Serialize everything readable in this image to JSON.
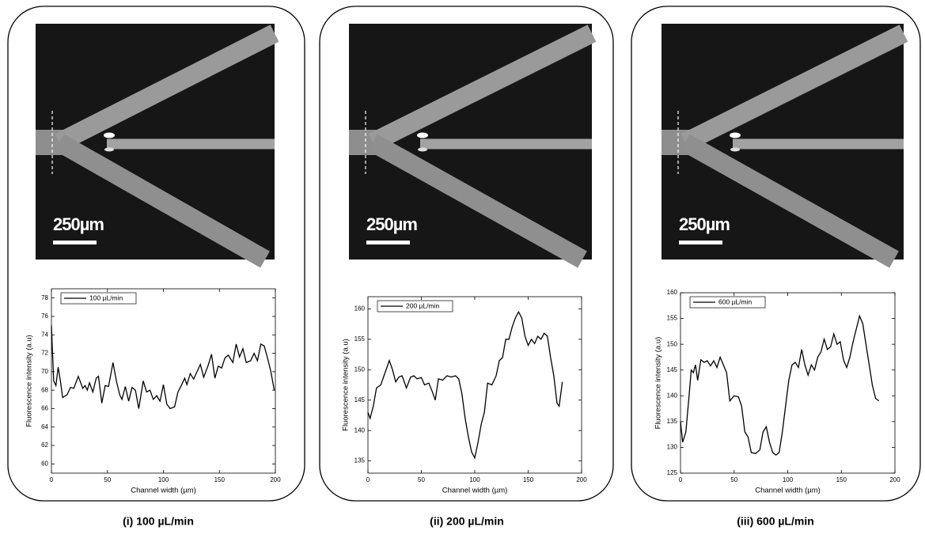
{
  "chart_data": [
    {
      "type": "line",
      "caption": "(i) 100 µL/min",
      "scale_bar_label": "250µm",
      "xlabel": "Channel width (µm)",
      "ylabel": "Fluorescence intensity (a.u)",
      "xlim": [
        0,
        200
      ],
      "ylim": [
        59,
        79
      ],
      "xticks": [
        0,
        50,
        100,
        150,
        200
      ],
      "yticks": [
        60,
        62,
        64,
        66,
        68,
        70,
        72,
        74,
        76,
        78
      ],
      "legend_position": "upper left",
      "x": [
        0,
        2,
        4,
        6,
        8,
        10,
        14,
        17,
        20,
        24,
        28,
        30,
        32,
        34,
        37,
        40,
        42,
        45,
        48,
        51,
        55,
        58,
        61,
        63,
        66,
        69,
        72,
        75,
        78,
        82,
        85,
        88,
        91,
        94,
        97,
        100,
        103,
        106,
        110,
        113,
        116,
        119,
        121,
        124,
        127,
        130,
        133,
        136,
        140,
        143,
        146,
        149,
        152,
        155,
        158,
        162,
        165,
        168,
        171,
        174,
        178,
        181,
        184,
        187,
        190,
        193,
        196,
        199
      ],
      "series": [
        {
          "name": "100 µL/min",
          "color": "#000000",
          "values": [
            75,
            69,
            68.5,
            70.5,
            69,
            67.2,
            67.5,
            68.3,
            68.2,
            69.5,
            68.2,
            68.5,
            68,
            68.8,
            67.8,
            69.3,
            69.5,
            66.6,
            68.5,
            68.4,
            71,
            69,
            67.5,
            67,
            68.4,
            66.8,
            68.3,
            68,
            66,
            69,
            67.8,
            68,
            67,
            67.4,
            66.8,
            68.6,
            66.5,
            66,
            66.2,
            67.8,
            68.5,
            69.3,
            68.6,
            69.8,
            69.2,
            70,
            70.8,
            69.4,
            70.7,
            71.9,
            69.3,
            70.6,
            70.4,
            71.5,
            71.8,
            71,
            73,
            71.6,
            72.5,
            71,
            71.2,
            72,
            71.2,
            73,
            72.8,
            71.5,
            70,
            68
          ]
        }
      ]
    },
    {
      "type": "line",
      "caption": "(ii) 200 µL/min",
      "scale_bar_label": "250µm",
      "xlabel": "Channel width (µm)",
      "ylabel": "Fluorescence intensity (a.u)",
      "xlim": [
        0,
        200
      ],
      "ylim": [
        133,
        162
      ],
      "xticks": [
        0,
        50,
        100,
        150,
        200
      ],
      "yticks": [
        135,
        140,
        145,
        150,
        155,
        160
      ],
      "legend_position": "upper left",
      "x": [
        0,
        2,
        5,
        8,
        12,
        16,
        20,
        23,
        26,
        29,
        32,
        36,
        40,
        43,
        46,
        50,
        53,
        57,
        60,
        63,
        66,
        70,
        74,
        78,
        82,
        85,
        88,
        91,
        94,
        97,
        100,
        103,
        106,
        109,
        112,
        116,
        120,
        123,
        126,
        129,
        132,
        135,
        138,
        141,
        144,
        147,
        150,
        153,
        156,
        159,
        162,
        165,
        168,
        171,
        174,
        177,
        179,
        182
      ],
      "series": [
        {
          "name": "200 µL/min",
          "color": "#000000",
          "values": [
            143,
            142,
            144,
            147,
            147.5,
            149.5,
            151.5,
            150,
            148,
            148.8,
            149,
            147,
            148.8,
            149,
            148.5,
            148.7,
            147.5,
            147.8,
            146.5,
            145,
            148.5,
            148.3,
            149,
            148.8,
            149,
            148.5,
            146,
            142,
            139,
            136.5,
            135.5,
            138,
            141,
            143,
            147.8,
            147.5,
            149,
            151.5,
            152,
            155,
            155,
            157,
            158.5,
            159.5,
            158.5,
            155.5,
            154,
            155,
            154.3,
            155.5,
            155,
            156,
            155.5,
            152,
            149,
            144.5,
            144,
            148
          ]
        }
      ]
    },
    {
      "type": "line",
      "caption": "(iii) 600 µL/min",
      "scale_bar_label": "250µm",
      "xlabel": "Channel width (µm)",
      "ylabel": "Fluorescence intensity (a.u)",
      "xlim": [
        0,
        200
      ],
      "ylim": [
        125,
        160
      ],
      "xticks": [
        0,
        50,
        100,
        150,
        200
      ],
      "yticks": [
        125,
        130,
        135,
        140,
        145,
        150,
        155,
        160
      ],
      "legend_position": "upper left",
      "x": [
        0,
        2,
        5,
        8,
        10,
        12,
        14,
        16,
        19,
        22,
        25,
        28,
        31,
        34,
        37,
        40,
        43,
        46,
        50,
        54,
        57,
        60,
        63,
        66,
        70,
        74,
        77,
        80,
        83,
        86,
        89,
        92,
        95,
        98,
        101,
        104,
        107,
        110,
        113,
        116,
        119,
        122,
        125,
        128,
        131,
        134,
        137,
        140,
        143,
        146,
        149,
        152,
        155,
        158,
        161,
        164,
        167,
        170,
        173,
        176,
        179,
        182,
        185
      ],
      "series": [
        {
          "name": "600 µL/min",
          "color": "#000000",
          "values": [
            135,
            131,
            133,
            140,
            145,
            144.5,
            146,
            143,
            147,
            146.5,
            146.8,
            145.8,
            146.8,
            145.5,
            147.5,
            146,
            144.5,
            139,
            140,
            139.8,
            138,
            133,
            132,
            129,
            128.8,
            129.5,
            133,
            134,
            131,
            129,
            128.5,
            129,
            133,
            138,
            143,
            146,
            146.5,
            145.5,
            149,
            146,
            144,
            146,
            145,
            147.5,
            148.5,
            151,
            149,
            149.5,
            152,
            150,
            150.5,
            147,
            145.5,
            147.5,
            150.5,
            153,
            155.5,
            154,
            150,
            146,
            142,
            139.5,
            139
          ]
        }
      ]
    }
  ]
}
